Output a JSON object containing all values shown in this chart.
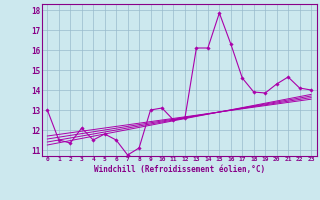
{
  "x": [
    0,
    1,
    2,
    3,
    4,
    5,
    6,
    7,
    8,
    9,
    10,
    11,
    12,
    13,
    14,
    15,
    16,
    17,
    18,
    19,
    20,
    21,
    22,
    23
  ],
  "main_line": [
    13.0,
    11.5,
    11.35,
    12.1,
    11.5,
    11.8,
    11.5,
    10.75,
    11.1,
    13.0,
    13.1,
    12.5,
    12.6,
    16.1,
    16.1,
    17.85,
    16.3,
    14.6,
    13.9,
    13.85,
    14.3,
    14.65,
    14.1,
    14.0
  ],
  "trend_lines": [
    [
      11.7,
      11.78,
      11.86,
      11.94,
      12.02,
      12.1,
      12.18,
      12.26,
      12.34,
      12.42,
      12.5,
      12.58,
      12.66,
      12.74,
      12.82,
      12.9,
      12.98,
      13.06,
      13.14,
      13.22,
      13.3,
      13.38,
      13.46,
      13.54
    ],
    [
      11.55,
      11.64,
      11.73,
      11.82,
      11.91,
      12.0,
      12.09,
      12.18,
      12.27,
      12.36,
      12.45,
      12.54,
      12.63,
      12.72,
      12.81,
      12.9,
      12.99,
      13.08,
      13.17,
      13.26,
      13.35,
      13.44,
      13.53,
      13.62
    ],
    [
      11.4,
      11.5,
      11.6,
      11.7,
      11.8,
      11.9,
      12.0,
      12.1,
      12.2,
      12.3,
      12.4,
      12.5,
      12.6,
      12.7,
      12.8,
      12.9,
      13.0,
      13.1,
      13.2,
      13.3,
      13.4,
      13.5,
      13.6,
      13.7
    ],
    [
      11.25,
      11.36,
      11.47,
      11.58,
      11.69,
      11.8,
      11.91,
      12.02,
      12.13,
      12.24,
      12.35,
      12.46,
      12.57,
      12.68,
      12.79,
      12.9,
      13.01,
      13.12,
      13.23,
      13.34,
      13.45,
      13.56,
      13.67,
      13.78
    ]
  ],
  "line_color": "#aa00aa",
  "background_color": "#cce8ee",
  "grid_color": "#99bbcc",
  "text_color": "#880088",
  "xlabel": "Windchill (Refroidissement éolien,°C)",
  "xlim": [
    -0.5,
    23.5
  ],
  "ylim": [
    10.7,
    18.3
  ],
  "yticks": [
    11,
    12,
    13,
    14,
    15,
    16,
    17,
    18
  ],
  "xticks": [
    0,
    1,
    2,
    3,
    4,
    5,
    6,
    7,
    8,
    9,
    10,
    11,
    12,
    13,
    14,
    15,
    16,
    17,
    18,
    19,
    20,
    21,
    22,
    23
  ]
}
